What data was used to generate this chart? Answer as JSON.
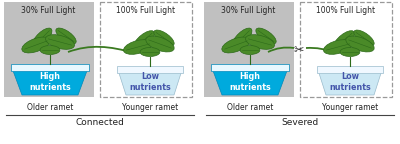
{
  "bg_color": "#ffffff",
  "gray_shade": "#c0c0c0",
  "dashed_box_color": "#999999",
  "blue_dark": "#00aadd",
  "blue_light": "#cce8f4",
  "pot_left_edge": "#0088bb",
  "pot_right_edge": "#99bbcc",
  "white_rim": "#e8f8ff",
  "green_dark": "#2d6a1a",
  "green_leaf": "#4a8a28",
  "green_stem": "#3a7a20",
  "text_color": "#222222",
  "text_white": "#ffffff",
  "text_blue_low": "#4455aa",
  "panel_labels": [
    "Connected",
    "Severed"
  ],
  "older_label": "Older ramet",
  "younger_label": "Younger ramet",
  "light_label_30": "30% Full Light",
  "light_label_100": "100% Full Light",
  "high_nutrients": "High\nnutrients",
  "low_nutrients": "Low\nnutrients",
  "scissors": "✂"
}
